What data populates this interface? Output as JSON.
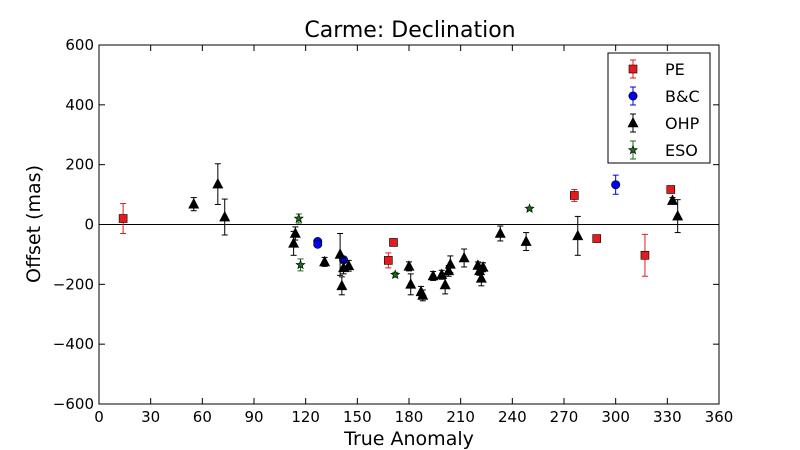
{
  "chart_data": {
    "type": "scatter",
    "title": "Carme: Declination",
    "xlabel": "True Anomaly",
    "ylabel": "Offset (mas)",
    "xlim": [
      0,
      360
    ],
    "ylim": [
      -600,
      600
    ],
    "xticks": [
      0,
      30,
      60,
      90,
      120,
      150,
      180,
      210,
      240,
      270,
      300,
      330,
      360
    ],
    "yticks": [
      -600,
      -400,
      -200,
      0,
      200,
      400,
      600
    ],
    "xtick_labels": [
      "0",
      "30",
      "60",
      "90",
      "120",
      "150",
      "180",
      "210",
      "240",
      "270",
      "300",
      "330",
      "360"
    ],
    "ytick_labels": [
      "−600",
      "−400",
      "−200",
      "0",
      "200",
      "400",
      "600"
    ],
    "zero_line": true,
    "grid": false,
    "legend_position": "top-right",
    "series": [
      {
        "name": "PE",
        "color": "#e41a1c",
        "marker": "square",
        "points": [
          {
            "x": 14,
            "y": 20,
            "err": 50
          },
          {
            "x": 168,
            "y": -120,
            "err": 25
          },
          {
            "x": 171,
            "y": -60,
            "err": 8
          },
          {
            "x": 276,
            "y": 97,
            "err": 20
          },
          {
            "x": 289,
            "y": -47,
            "err": 8
          },
          {
            "x": 317,
            "y": -103,
            "err": 70
          },
          {
            "x": 332,
            "y": 117,
            "err": 10
          }
        ]
      },
      {
        "name": "B&C",
        "color": "#0000ee",
        "marker": "circle",
        "points": [
          {
            "x": 127,
            "y": -57,
            "err": 8
          },
          {
            "x": 127,
            "y": -66,
            "err": 8
          },
          {
            "x": 142,
            "y": -118,
            "err": 10
          },
          {
            "x": 300,
            "y": 133,
            "err": 32
          }
        ]
      },
      {
        "name": "OHP",
        "color": "#000000",
        "marker": "triangle",
        "points": [
          {
            "x": 55,
            "y": 68,
            "err": 22
          },
          {
            "x": 69,
            "y": 135,
            "err": 68
          },
          {
            "x": 73,
            "y": 25,
            "err": 60
          },
          {
            "x": 113,
            "y": -63,
            "err": 40
          },
          {
            "x": 114,
            "y": -30,
            "err": 22
          },
          {
            "x": 131,
            "y": -125,
            "err": 15
          },
          {
            "x": 140,
            "y": -100,
            "err": 70
          },
          {
            "x": 141,
            "y": -205,
            "err": 30
          },
          {
            "x": 142,
            "y": -145,
            "err": 20
          },
          {
            "x": 145,
            "y": -138,
            "err": 18
          },
          {
            "x": 180,
            "y": -140,
            "err": 15
          },
          {
            "x": 181,
            "y": -200,
            "err": 35
          },
          {
            "x": 187,
            "y": -225,
            "err": 18
          },
          {
            "x": 188,
            "y": -237,
            "err": 18
          },
          {
            "x": 194,
            "y": -172,
            "err": 15
          },
          {
            "x": 199,
            "y": -168,
            "err": 15
          },
          {
            "x": 201,
            "y": -202,
            "err": 30
          },
          {
            "x": 203,
            "y": -155,
            "err": 18
          },
          {
            "x": 204,
            "y": -133,
            "err": 28
          },
          {
            "x": 212,
            "y": -112,
            "err": 30
          },
          {
            "x": 220,
            "y": -137,
            "err": 12
          },
          {
            "x": 221,
            "y": -155,
            "err": 15
          },
          {
            "x": 222,
            "y": -180,
            "err": 25
          },
          {
            "x": 223,
            "y": -143,
            "err": 15
          },
          {
            "x": 233,
            "y": -30,
            "err": 25
          },
          {
            "x": 248,
            "y": -57,
            "err": 30
          },
          {
            "x": 278,
            "y": -38,
            "err": 65
          },
          {
            "x": 333,
            "y": 80,
            "err": 10
          },
          {
            "x": 336,
            "y": 28,
            "err": 55
          }
        ]
      },
      {
        "name": "ESO",
        "color": "#1a6b1a",
        "marker": "star",
        "points": [
          {
            "x": 116,
            "y": 20,
            "err": 15
          },
          {
            "x": 117,
            "y": -135,
            "err": 20
          },
          {
            "x": 172,
            "y": -168,
            "err": 8
          },
          {
            "x": 250,
            "y": 53,
            "err": 5
          }
        ]
      }
    ]
  }
}
